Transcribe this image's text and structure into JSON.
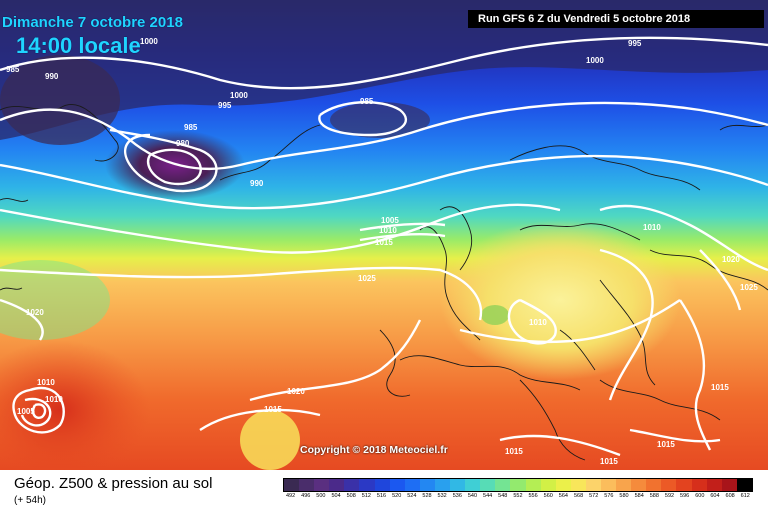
{
  "header": {
    "date": "Dimanche 7 octobre 2018",
    "time": "14:00 locale",
    "run": "Run GFS 6 Z du Vendredi 5 octobre 2018"
  },
  "copyright": "Copyright © 2018 Meteociel.fr",
  "footer": {
    "title": "Géop. Z500 & pression au sol",
    "subtitle": "(+ 54h)"
  },
  "legend": {
    "labels": [
      "492",
      "496",
      "500",
      "504",
      "508",
      "512",
      "516",
      "520",
      "524",
      "528",
      "532",
      "536",
      "540",
      "544",
      "548",
      "552",
      "556",
      "560",
      "564",
      "568",
      "572",
      "576",
      "580",
      "584",
      "588",
      "592",
      "596",
      "600",
      "604",
      "608",
      "612"
    ],
    "colors": [
      "#3a2a52",
      "#4a2d6b",
      "#5a2f80",
      "#4b2a8a",
      "#3a31a8",
      "#2b39c5",
      "#1f46dc",
      "#1b58f0",
      "#1e6ef4",
      "#2387f2",
      "#29a0ee",
      "#31b8e5",
      "#3fcfd5",
      "#57dcb6",
      "#74e493",
      "#93ea6e",
      "#b4ee54",
      "#d2f046",
      "#ebf04a",
      "#f8e65a",
      "#fcd36a",
      "#fbbd5c",
      "#f8a44c",
      "#f58b3c",
      "#f1722f",
      "#ec5a26",
      "#e3431f",
      "#d62f1b",
      "#c21f1a",
      "#a8141a",
      "#000000"
    ]
  },
  "isobars": [
    "985",
    "990",
    "995",
    "1000",
    "985",
    "985",
    "980",
    "990",
    "995",
    "1000",
    "1005",
    "1010",
    "1015",
    "1025",
    "1020",
    "1010",
    "1010",
    "1005",
    "1000",
    "1020",
    "1015",
    "1015",
    "1015",
    "1015",
    "1010",
    "1020",
    "1025",
    "1015",
    "1010"
  ],
  "colors": {
    "title": "#1fd4ff",
    "isobar": "#ffffff"
  }
}
